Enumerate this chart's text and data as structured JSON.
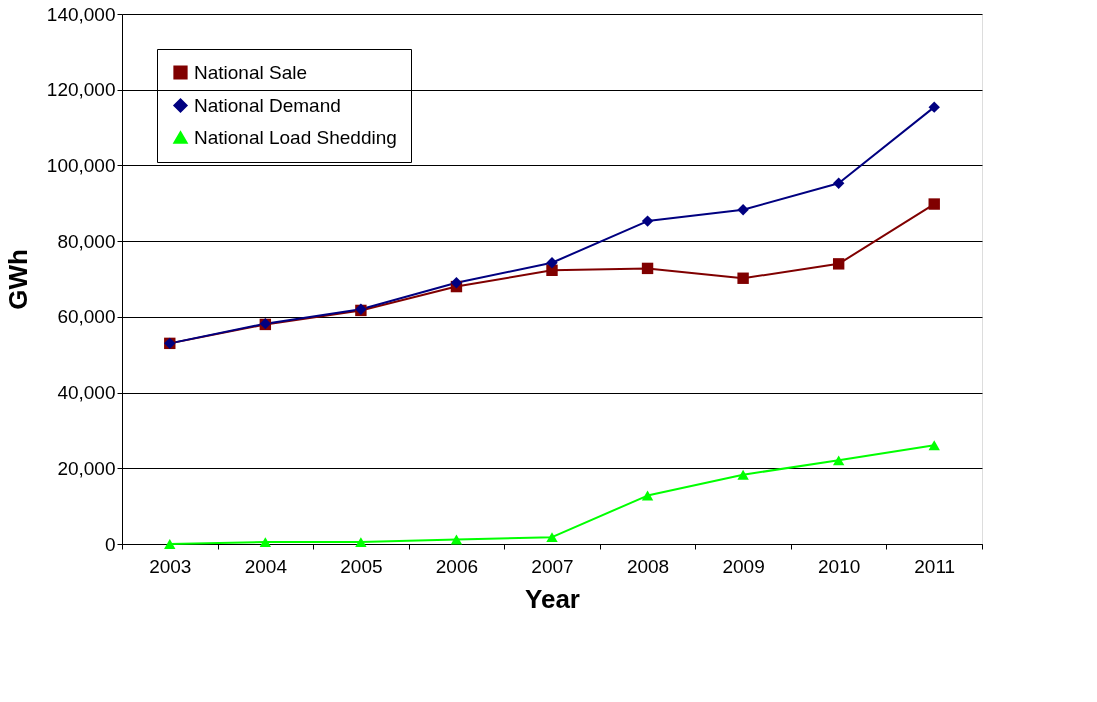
{
  "chart_data": {
    "type": "line",
    "xlabel": "Year",
    "ylabel": "GWh",
    "categories": [
      "2003",
      "2004",
      "2005",
      "2006",
      "2007",
      "2008",
      "2009",
      "2010",
      "2011"
    ],
    "series": [
      {
        "name": "National Sale",
        "color": "#800000",
        "marker": "square",
        "values": [
          53000,
          58000,
          61700,
          68000,
          72300,
          72800,
          70200,
          74000,
          89800
        ]
      },
      {
        "name": "National Demand",
        "color": "#000080",
        "marker": "diamond",
        "values": [
          53000,
          58200,
          62000,
          69000,
          74300,
          85300,
          88300,
          95300,
          115400
        ]
      },
      {
        "name": "National Load Shedding",
        "color": "#00ff00",
        "marker": "triangle",
        "values": [
          0,
          500,
          500,
          1200,
          1800,
          12800,
          18300,
          22100,
          26100
        ]
      }
    ],
    "ylim": [
      0,
      140000
    ],
    "yticks": [
      0,
      {
        "value": 20000,
        "label": "20,000"
      },
      {
        "value": 40000,
        "label": "40,000"
      },
      {
        "value": 60000,
        "label": "60,000"
      },
      {
        "value": 80000,
        "label": "80,000"
      },
      {
        "value": 100000,
        "label": "100,000"
      },
      {
        "value": 120000,
        "label": "120,000"
      },
      {
        "value": 140000,
        "label": "140,000"
      }
    ],
    "grid": "y",
    "legend": "top left",
    "line_style": "solid"
  }
}
